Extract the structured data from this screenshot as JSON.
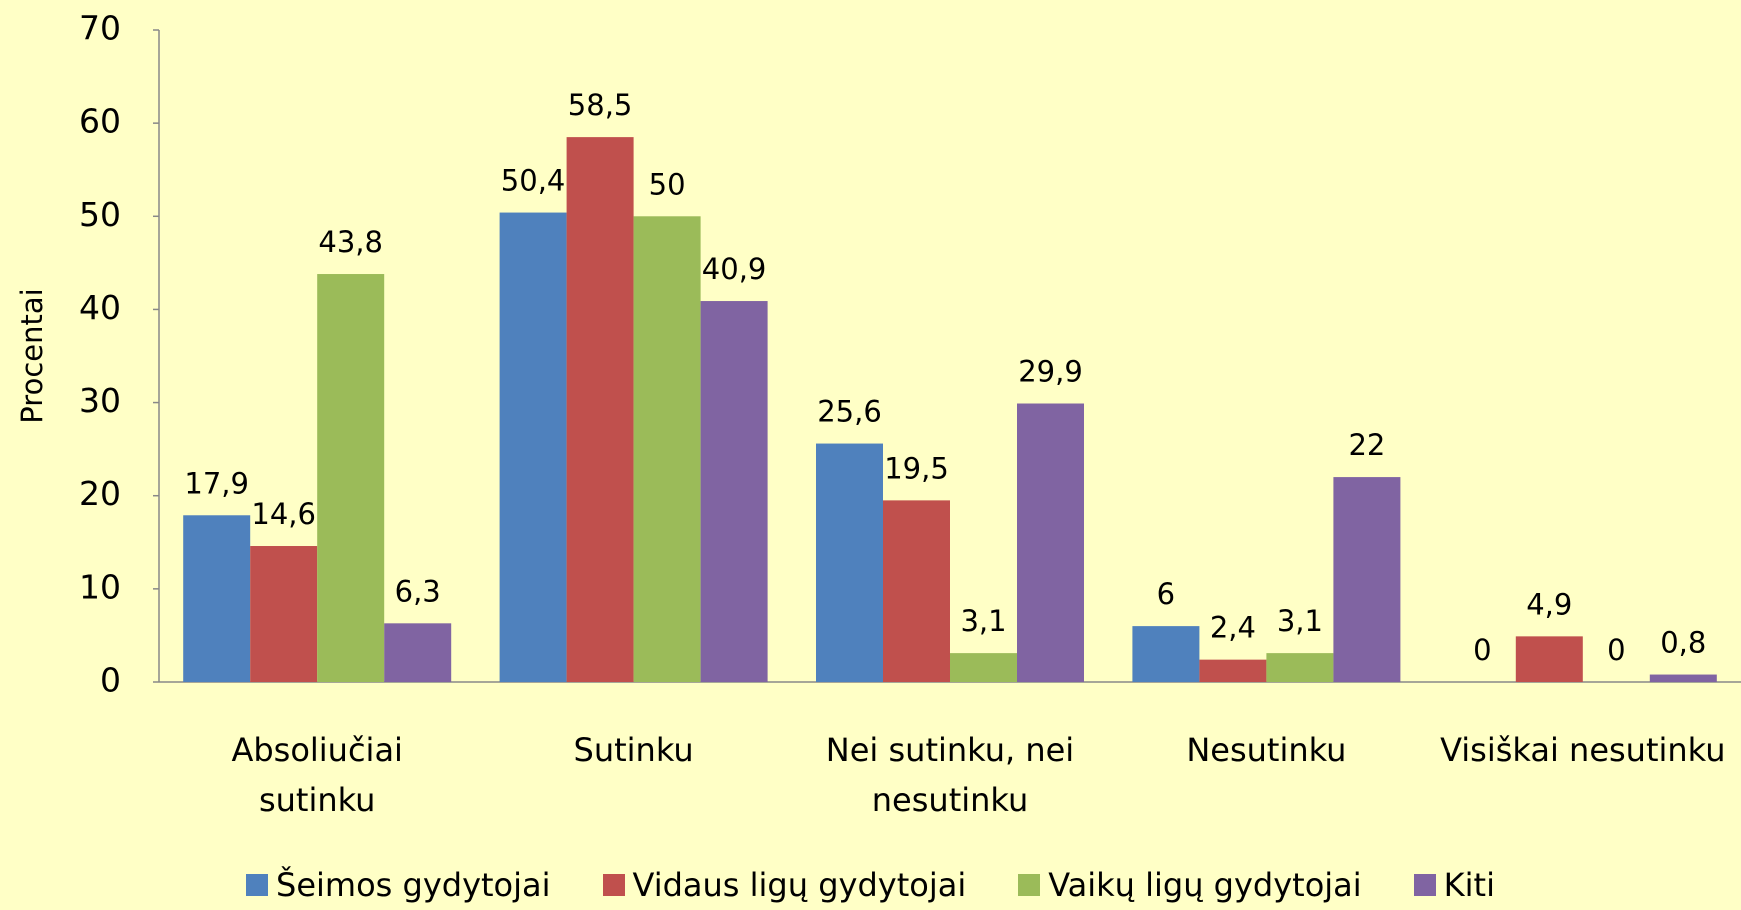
{
  "chart_data": {
    "type": "bar",
    "y_axis_label": "Procentai",
    "categories": [
      "Absoliučiai sutinku",
      "Sutinku",
      "Nei sutinku, nei nesutinku",
      "Nesutinku",
      "Visiškai nesutinku"
    ],
    "series": [
      {
        "name": "Šeimos gydytojai",
        "color": "#4f81bd",
        "values": [
          17.9,
          50.4,
          25.6,
          6,
          0
        ],
        "value_labels": [
          "17,9",
          "50,4",
          "25,6",
          "6",
          "0"
        ]
      },
      {
        "name": "Vidaus ligų gydytojai",
        "color": "#c0504d",
        "values": [
          14.6,
          58.5,
          19.5,
          2.4,
          4.9
        ],
        "value_labels": [
          "14,6",
          "58,5",
          "19,5",
          "2,4",
          "4,9"
        ]
      },
      {
        "name": "Vaikų ligų gydytojai",
        "color": "#9bbb59",
        "values": [
          43.8,
          50,
          3.1,
          3.1,
          0
        ],
        "value_labels": [
          "43,8",
          "50",
          "3,1",
          "3,1",
          "0"
        ]
      },
      {
        "name": "Kiti",
        "color": "#8064a2",
        "values": [
          6.3,
          40.9,
          29.9,
          22,
          0.8
        ],
        "value_labels": [
          "6,3",
          "40,9",
          "29,9",
          "22",
          "0,8"
        ]
      }
    ],
    "ylim": [
      0,
      70
    ],
    "yticks": [
      0,
      10,
      20,
      30,
      40,
      50,
      60,
      70
    ],
    "grid": false,
    "legend": "bottom"
  }
}
